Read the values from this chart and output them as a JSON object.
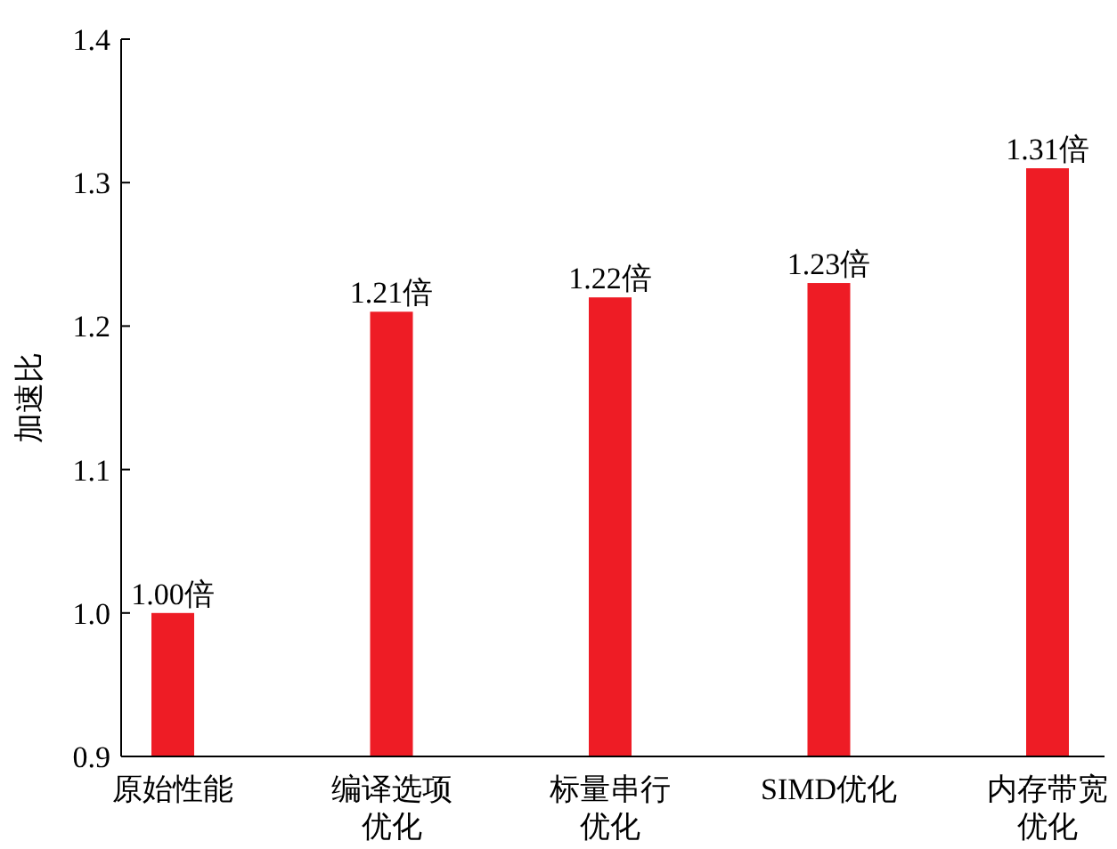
{
  "chart_data": {
    "type": "bar",
    "ylabel": "加速比",
    "categories": [
      "原始性能",
      "编译选项优化",
      "标量串行优化",
      "SIMD优化",
      "内存带宽优化"
    ],
    "values": [
      1.0,
      1.21,
      1.22,
      1.23,
      1.31
    ],
    "value_labels": [
      "1.00倍",
      "1.21倍",
      "1.22倍",
      "1.23倍",
      "1.31倍"
    ],
    "color": "#ee1c25",
    "ylim": [
      0.9,
      1.4
    ],
    "yticks": [
      0.9,
      {
        "value": 1,
        "label": "1.0"
      },
      1.1,
      1.2,
      1.3,
      1.4
    ],
    "grid": false
  }
}
